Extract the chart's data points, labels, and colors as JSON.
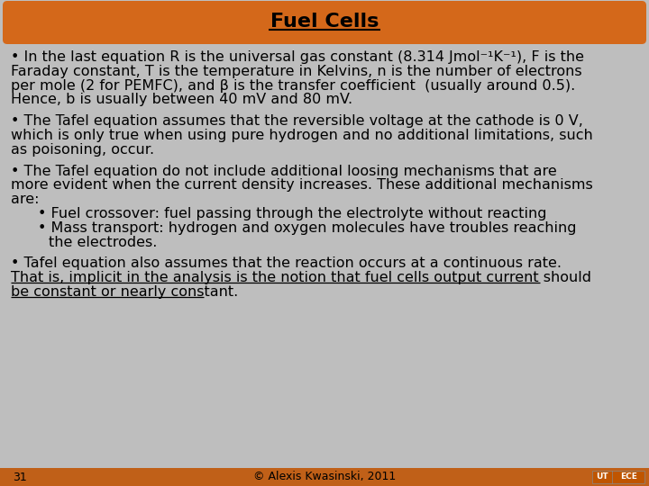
{
  "title": "Fuel Cells",
  "bg_color": "#BEBEBE",
  "title_bg_color": "#D4681A",
  "footer_bar_color": "#C06018",
  "page_number": "31",
  "footer_center": "© Alexis Kwasinski, 2011",
  "font_size": 11.5,
  "title_font_size": 16,
  "lines": [
    {
      "text": "• In the last equation R is the universal gas constant (8.314 Jmol⁻¹K⁻¹), F is the",
      "x": 12,
      "style": "normal",
      "italic_chars": []
    },
    {
      "text": "Faraday constant, T is the temperature in Kelvins, n is the number of electrons",
      "x": 12,
      "style": "normal",
      "italic_chars": []
    },
    {
      "text": "per mole (2 for PEMFC), and β is the transfer coefficient  (usually around 0.5).",
      "x": 12,
      "style": "normal",
      "italic_chars": []
    },
    {
      "text": "Hence, b is usually between 40 mV and 80 mV.",
      "x": 12,
      "style": "normal",
      "italic_chars": []
    },
    {
      "text": "",
      "x": 12,
      "style": "gap",
      "italic_chars": []
    },
    {
      "text": "• The Tafel equation assumes that the reversible voltage at the cathode is 0 V,",
      "x": 12,
      "style": "normal",
      "italic_chars": []
    },
    {
      "text": "which is only true when using pure hydrogen and no additional limitations, such",
      "x": 12,
      "style": "normal",
      "italic_chars": []
    },
    {
      "text": "as poisoning, occur.",
      "x": 12,
      "style": "normal",
      "italic_chars": []
    },
    {
      "text": "",
      "x": 12,
      "style": "gap",
      "italic_chars": []
    },
    {
      "text": "• The Tafel equation do not include additional loosing mechanisms that are",
      "x": 12,
      "style": "normal",
      "italic_chars": []
    },
    {
      "text": "more evident when the current density increases. These additional mechanisms",
      "x": 12,
      "style": "normal",
      "italic_chars": []
    },
    {
      "text": "are:",
      "x": 12,
      "style": "normal",
      "italic_chars": []
    },
    {
      "text": "• Fuel crossover: fuel passing through the electrolyte without reacting",
      "x": 42,
      "style": "normal",
      "italic_chars": []
    },
    {
      "text": "• Mass transport: hydrogen and oxygen molecules have troubles reaching",
      "x": 42,
      "style": "normal",
      "italic_chars": []
    },
    {
      "text": "the electrodes.",
      "x": 54,
      "style": "normal",
      "italic_chars": []
    },
    {
      "text": "",
      "x": 12,
      "style": "gap",
      "italic_chars": []
    },
    {
      "text": "• Tafel equation also assumes that the reaction occurs at a continuous rate.",
      "x": 12,
      "style": "normal",
      "italic_chars": []
    },
    {
      "text": "That is, implicit in the analysis is the notion that fuel cells output current should",
      "x": 12,
      "style": "underline",
      "italic_chars": []
    },
    {
      "text": "be constant or nearly constant.",
      "x": 12,
      "style": "underline",
      "italic_chars": []
    }
  ]
}
